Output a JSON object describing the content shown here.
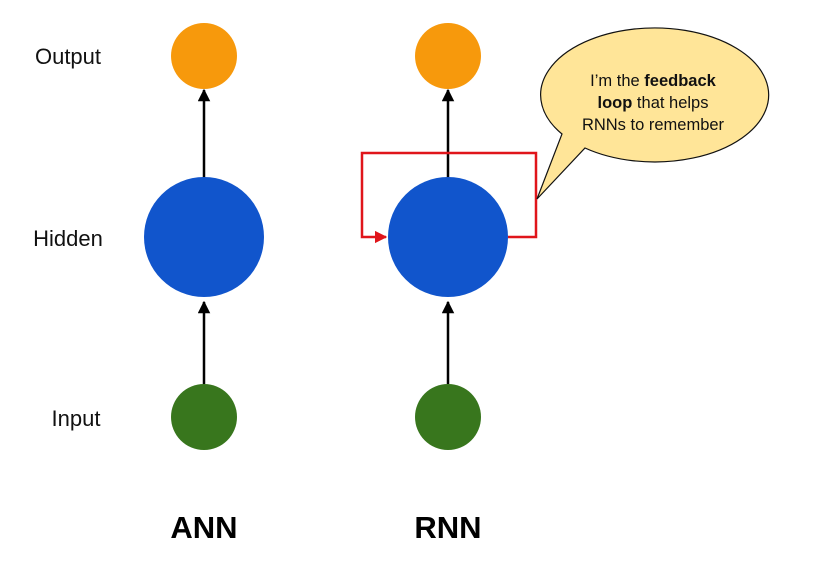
{
  "labels": {
    "output": "Output",
    "hidden": "Hidden",
    "input": "Input"
  },
  "networks": {
    "ann": {
      "title": "ANN"
    },
    "rnn": {
      "title": "RNN"
    }
  },
  "callout": {
    "line1_a": "I’m the ",
    "line1_b": "feedback",
    "line2_a": "loop",
    "line2_b": " that helps",
    "line3": "RNNs to remember"
  },
  "colors": {
    "output_node": "#f7990c",
    "hidden_node": "#1155cc",
    "input_node": "#38761d",
    "feedback_loop": "#e0151b",
    "callout_fill": "#ffe598",
    "callout_stroke": "#111111"
  }
}
